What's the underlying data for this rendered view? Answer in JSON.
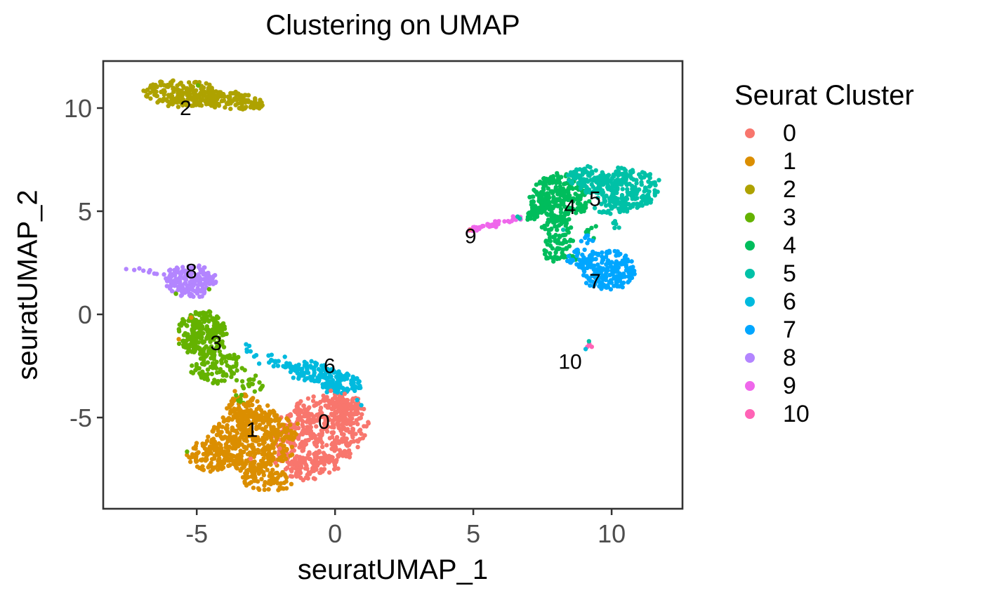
{
  "chart_data": {
    "type": "scatter",
    "title": "Clustering on UMAP",
    "xlabel": "seuratUMAP_1",
    "ylabel": "seuratUMAP_2",
    "xlim": [
      -8.38,
      12.56
    ],
    "ylim": [
      -9.42,
      12.28
    ],
    "grid": false,
    "legend_position": "right",
    "legend_title": "Seurat Cluster",
    "x_ticks": [
      {
        "value": -5,
        "label": "-5"
      },
      {
        "value": 0,
        "label": "0"
      },
      {
        "value": 5,
        "label": "5"
      },
      {
        "value": 10,
        "label": "10"
      }
    ],
    "y_ticks": [
      {
        "value": 10,
        "label": "10"
      },
      {
        "value": 5,
        "label": "5"
      },
      {
        "value": 0,
        "label": "0"
      },
      {
        "value": -5,
        "label": "-5"
      }
    ],
    "clusters": [
      {
        "id": "0",
        "label": "0",
        "color": "#F8766D",
        "approx_n": 610,
        "label_pos": [
          -0.4,
          -5.2
        ],
        "blobs": [
          {
            "cx": -0.55,
            "cy": -5.7,
            "rx": 1.5,
            "ry": 1.95,
            "rot": -32,
            "n": 470
          },
          {
            "cx": 0.4,
            "cy": -4.65,
            "rx": 0.6,
            "ry": 0.7,
            "rot": 0,
            "n": 70
          },
          {
            "cx": -0.85,
            "cy": -7.4,
            "rx": 0.95,
            "ry": 0.6,
            "rot": 15,
            "n": 70
          }
        ],
        "trails": [],
        "points": []
      },
      {
        "id": "1",
        "label": "1",
        "color": "#DB8E00",
        "approx_n": 710,
        "label_pos": [
          -3.0,
          -5.6
        ],
        "blobs": [
          {
            "cx": -3.0,
            "cy": -6.1,
            "rx": 1.6,
            "ry": 1.45,
            "rot": 35,
            "n": 480
          },
          {
            "cx": -3.3,
            "cy": -4.5,
            "rx": 0.6,
            "ry": 0.6,
            "rot": 0,
            "n": 60
          },
          {
            "cx": -2.5,
            "cy": -8.0,
            "rx": 0.95,
            "ry": 0.55,
            "rot": -15,
            "n": 80
          },
          {
            "cx": -4.55,
            "cy": -6.9,
            "rx": 0.8,
            "ry": 0.75,
            "rot": 0,
            "n": 90
          }
        ],
        "trails": [],
        "points": []
      },
      {
        "id": "2",
        "label": "2",
        "color": "#AEA200",
        "approx_n": 325,
        "label_pos": [
          -5.4,
          10.0
        ],
        "blobs": [
          {
            "cx": -5.5,
            "cy": 10.7,
            "rx": 1.4,
            "ry": 0.65,
            "rot": -6,
            "n": 210
          },
          {
            "cx": -3.8,
            "cy": 10.4,
            "rx": 1.0,
            "ry": 0.45,
            "rot": -8,
            "n": 90
          }
        ],
        "trails": [
          {
            "x1": -3.1,
            "y1": 10.2,
            "x2": -2.55,
            "y2": 10.1,
            "w": 0.22,
            "n": 25
          }
        ],
        "points": []
      },
      {
        "id": "3",
        "label": "3",
        "color": "#64B200",
        "approx_n": 370,
        "label_pos": [
          -4.3,
          -1.4
        ],
        "blobs": [
          {
            "cx": -4.8,
            "cy": -0.9,
            "rx": 0.9,
            "ry": 1.05,
            "rot": 12,
            "n": 250
          },
          {
            "cx": -4.2,
            "cy": -2.55,
            "rx": 0.95,
            "ry": 0.8,
            "rot": 0,
            "n": 95
          }
        ],
        "trails": [
          {
            "x1": -3.45,
            "y1": -3.25,
            "x2": -2.45,
            "y2": -3.55,
            "w": 0.3,
            "n": 18
          },
          {
            "x1": -3.6,
            "y1": -3.9,
            "x2": -3.2,
            "y2": -4.5,
            "w": 0.2,
            "n": 7
          }
        ],
        "points": []
      },
      {
        "id": "4",
        "label": "4",
        "color": "#00BD5C",
        "approx_n": 407,
        "label_pos": [
          8.5,
          5.2
        ],
        "blobs": [
          {
            "cx": 8.1,
            "cy": 5.6,
            "rx": 1.05,
            "ry": 1.15,
            "rot": 0,
            "n": 260
          },
          {
            "cx": 8.05,
            "cy": 3.25,
            "rx": 0.55,
            "ry": 0.75,
            "rot": -25,
            "n": 60
          },
          {
            "cx": 7.95,
            "cy": 4.35,
            "rx": 0.55,
            "ry": 0.5,
            "rot": 0,
            "n": 45
          }
        ],
        "trails": [
          {
            "x1": 6.9,
            "y1": 4.7,
            "x2": 7.45,
            "y2": 5.0,
            "w": 0.3,
            "n": 28
          },
          {
            "x1": 8.5,
            "y1": 2.95,
            "x2": 8.75,
            "y2": 2.7,
            "w": 0.2,
            "n": 6
          },
          {
            "x1": 8.9,
            "y1": 4.35,
            "x2": 9.4,
            "y2": 3.7,
            "w": 0.3,
            "n": 8
          }
        ],
        "points": []
      },
      {
        "id": "5",
        "label": "5",
        "color": "#00C1A7",
        "approx_n": 340,
        "label_pos": [
          9.4,
          5.6
        ],
        "blobs": [
          {
            "cx": 10.6,
            "cy": 6.15,
            "rx": 1.1,
            "ry": 1.0,
            "rot": -10,
            "n": 200
          },
          {
            "cx": 9.25,
            "cy": 6.5,
            "rx": 0.8,
            "ry": 0.6,
            "rot": -25,
            "n": 95
          },
          {
            "cx": 10.0,
            "cy": 5.3,
            "rx": 0.55,
            "ry": 0.45,
            "rot": 0,
            "n": 40
          }
        ],
        "trails": [
          {
            "x1": 10.05,
            "y1": 4.7,
            "x2": 10.3,
            "y2": 4.15,
            "w": 0.18,
            "n": 5
          }
        ],
        "points": []
      },
      {
        "id": "6",
        "label": "6",
        "color": "#00BADE",
        "approx_n": 214,
        "label_pos": [
          -0.2,
          -2.5
        ],
        "blobs": [
          {
            "cx": -0.9,
            "cy": -2.75,
            "rx": 0.95,
            "ry": 0.5,
            "rot": -15,
            "n": 85
          },
          {
            "cx": 0.15,
            "cy": -3.3,
            "rx": 0.8,
            "ry": 0.55,
            "rot": -15,
            "n": 105
          }
        ],
        "trails": [
          {
            "x1": -3.25,
            "y1": -1.75,
            "x2": -1.7,
            "y2": -2.5,
            "w": 0.28,
            "n": 24
          }
        ],
        "points": []
      },
      {
        "id": "7",
        "label": "7",
        "color": "#00A6FF",
        "approx_n": 230,
        "label_pos": [
          9.4,
          1.6
        ],
        "blobs": [
          {
            "cx": 9.85,
            "cy": 2.15,
            "rx": 1.0,
            "ry": 0.92,
            "rot": -35,
            "n": 185
          },
          {
            "cx": 8.9,
            "cy": 2.7,
            "rx": 0.5,
            "ry": 0.48,
            "rot": 0,
            "n": 38
          }
        ],
        "trails": [
          {
            "x1": 8.85,
            "y1": 3.75,
            "x2": 9.55,
            "y2": 3.6,
            "w": 0.22,
            "n": 7
          }
        ],
        "points": []
      },
      {
        "id": "8",
        "label": "8",
        "color": "#B385FF",
        "approx_n": 188,
        "label_pos": [
          -5.2,
          2.1
        ],
        "blobs": [
          {
            "cx": -5.25,
            "cy": 1.6,
            "rx": 0.9,
            "ry": 0.78,
            "rot": 0,
            "n": 180
          }
        ],
        "trails": [
          {
            "x1": -6.35,
            "y1": 1.95,
            "x2": -7.3,
            "y2": 2.2,
            "w": 0.12,
            "n": 7
          }
        ],
        "points": [
          [
            -7.55,
            2.2
          ]
        ]
      },
      {
        "id": "9",
        "label": "9",
        "color": "#EF67EB",
        "approx_n": 48,
        "label_pos": [
          4.9,
          3.8
        ],
        "blobs": [
          {
            "cx": 6.62,
            "cy": 4.62,
            "rx": 0.16,
            "ry": 0.12,
            "rot": 0,
            "n": 7
          }
        ],
        "trails": [
          {
            "x1": 4.85,
            "y1": 4.12,
            "x2": 6.0,
            "y2": 4.42,
            "w": 0.12,
            "n": 34
          },
          {
            "x1": 6.1,
            "y1": 4.47,
            "x2": 6.5,
            "y2": 4.58,
            "w": 0.1,
            "n": 7
          }
        ],
        "points": []
      },
      {
        "id": "10",
        "label": "10",
        "color": "#FF63B6",
        "approx_n": 4,
        "label_pos": [
          8.5,
          -2.3
        ],
        "blobs": [],
        "trails": [],
        "points": [
          [
            9.2,
            -1.48
          ],
          [
            9.28,
            -1.57
          ],
          [
            9.12,
            -1.57
          ],
          [
            9.19,
            -1.42
          ]
        ]
      }
    ],
    "stray_points": [
      {
        "x": -4.95,
        "y": 11.1,
        "color": "#64B200"
      },
      {
        "x": -5.35,
        "y": -6.65,
        "color": "#64B200"
      },
      {
        "x": -5.75,
        "y": 1.0,
        "color": "#64B200"
      },
      {
        "x": -4.55,
        "y": 1.22,
        "color": "#64B200"
      },
      {
        "x": -5.2,
        "y": -0.15,
        "color": "#DB8E00"
      },
      {
        "x": -5.65,
        "y": -1.2,
        "color": "#DB8E00"
      },
      {
        "x": -3.62,
        "y": -3.72,
        "color": "#DB8E00"
      },
      {
        "x": -3.3,
        "y": -4.35,
        "color": "#DB8E00"
      },
      {
        "x": -1.35,
        "y": -5.3,
        "color": "#DB8E00"
      },
      {
        "x": -1.55,
        "y": -6.8,
        "color": "#DB8E00"
      },
      {
        "x": -2.0,
        "y": -6.5,
        "color": "#F8766D"
      },
      {
        "x": -2.15,
        "y": -7.2,
        "color": "#F8766D"
      },
      {
        "x": -3.05,
        "y": -7.0,
        "color": "#F8766D"
      },
      {
        "x": -0.15,
        "y": -3.7,
        "color": "#F8766D"
      },
      {
        "x": 0.35,
        "y": -3.85,
        "color": "#F8766D"
      },
      {
        "x": 4.88,
        "y": 4.1,
        "color": "#F8766D"
      },
      {
        "x": 6.6,
        "y": 4.74,
        "color": "#00C1A7"
      },
      {
        "x": 6.68,
        "y": 4.65,
        "color": "#00C1A7"
      },
      {
        "x": 8.25,
        "y": 4.1,
        "color": "#00C1A7"
      },
      {
        "x": 9.18,
        "y": -1.3,
        "color": "#00C1A7"
      },
      {
        "x": 9.06,
        "y": -1.68,
        "color": "#00BADE"
      },
      {
        "x": 0.8,
        "y": -4.15,
        "color": "#00BADE"
      },
      {
        "x": 0.95,
        "y": -4.4,
        "color": "#00BADE"
      }
    ],
    "style": {
      "panel_border_color": "#333333",
      "tick_color": "#333333",
      "tick_label_color": "#4D4D4D",
      "text_color": "#000000",
      "background": "#ffffff"
    }
  }
}
